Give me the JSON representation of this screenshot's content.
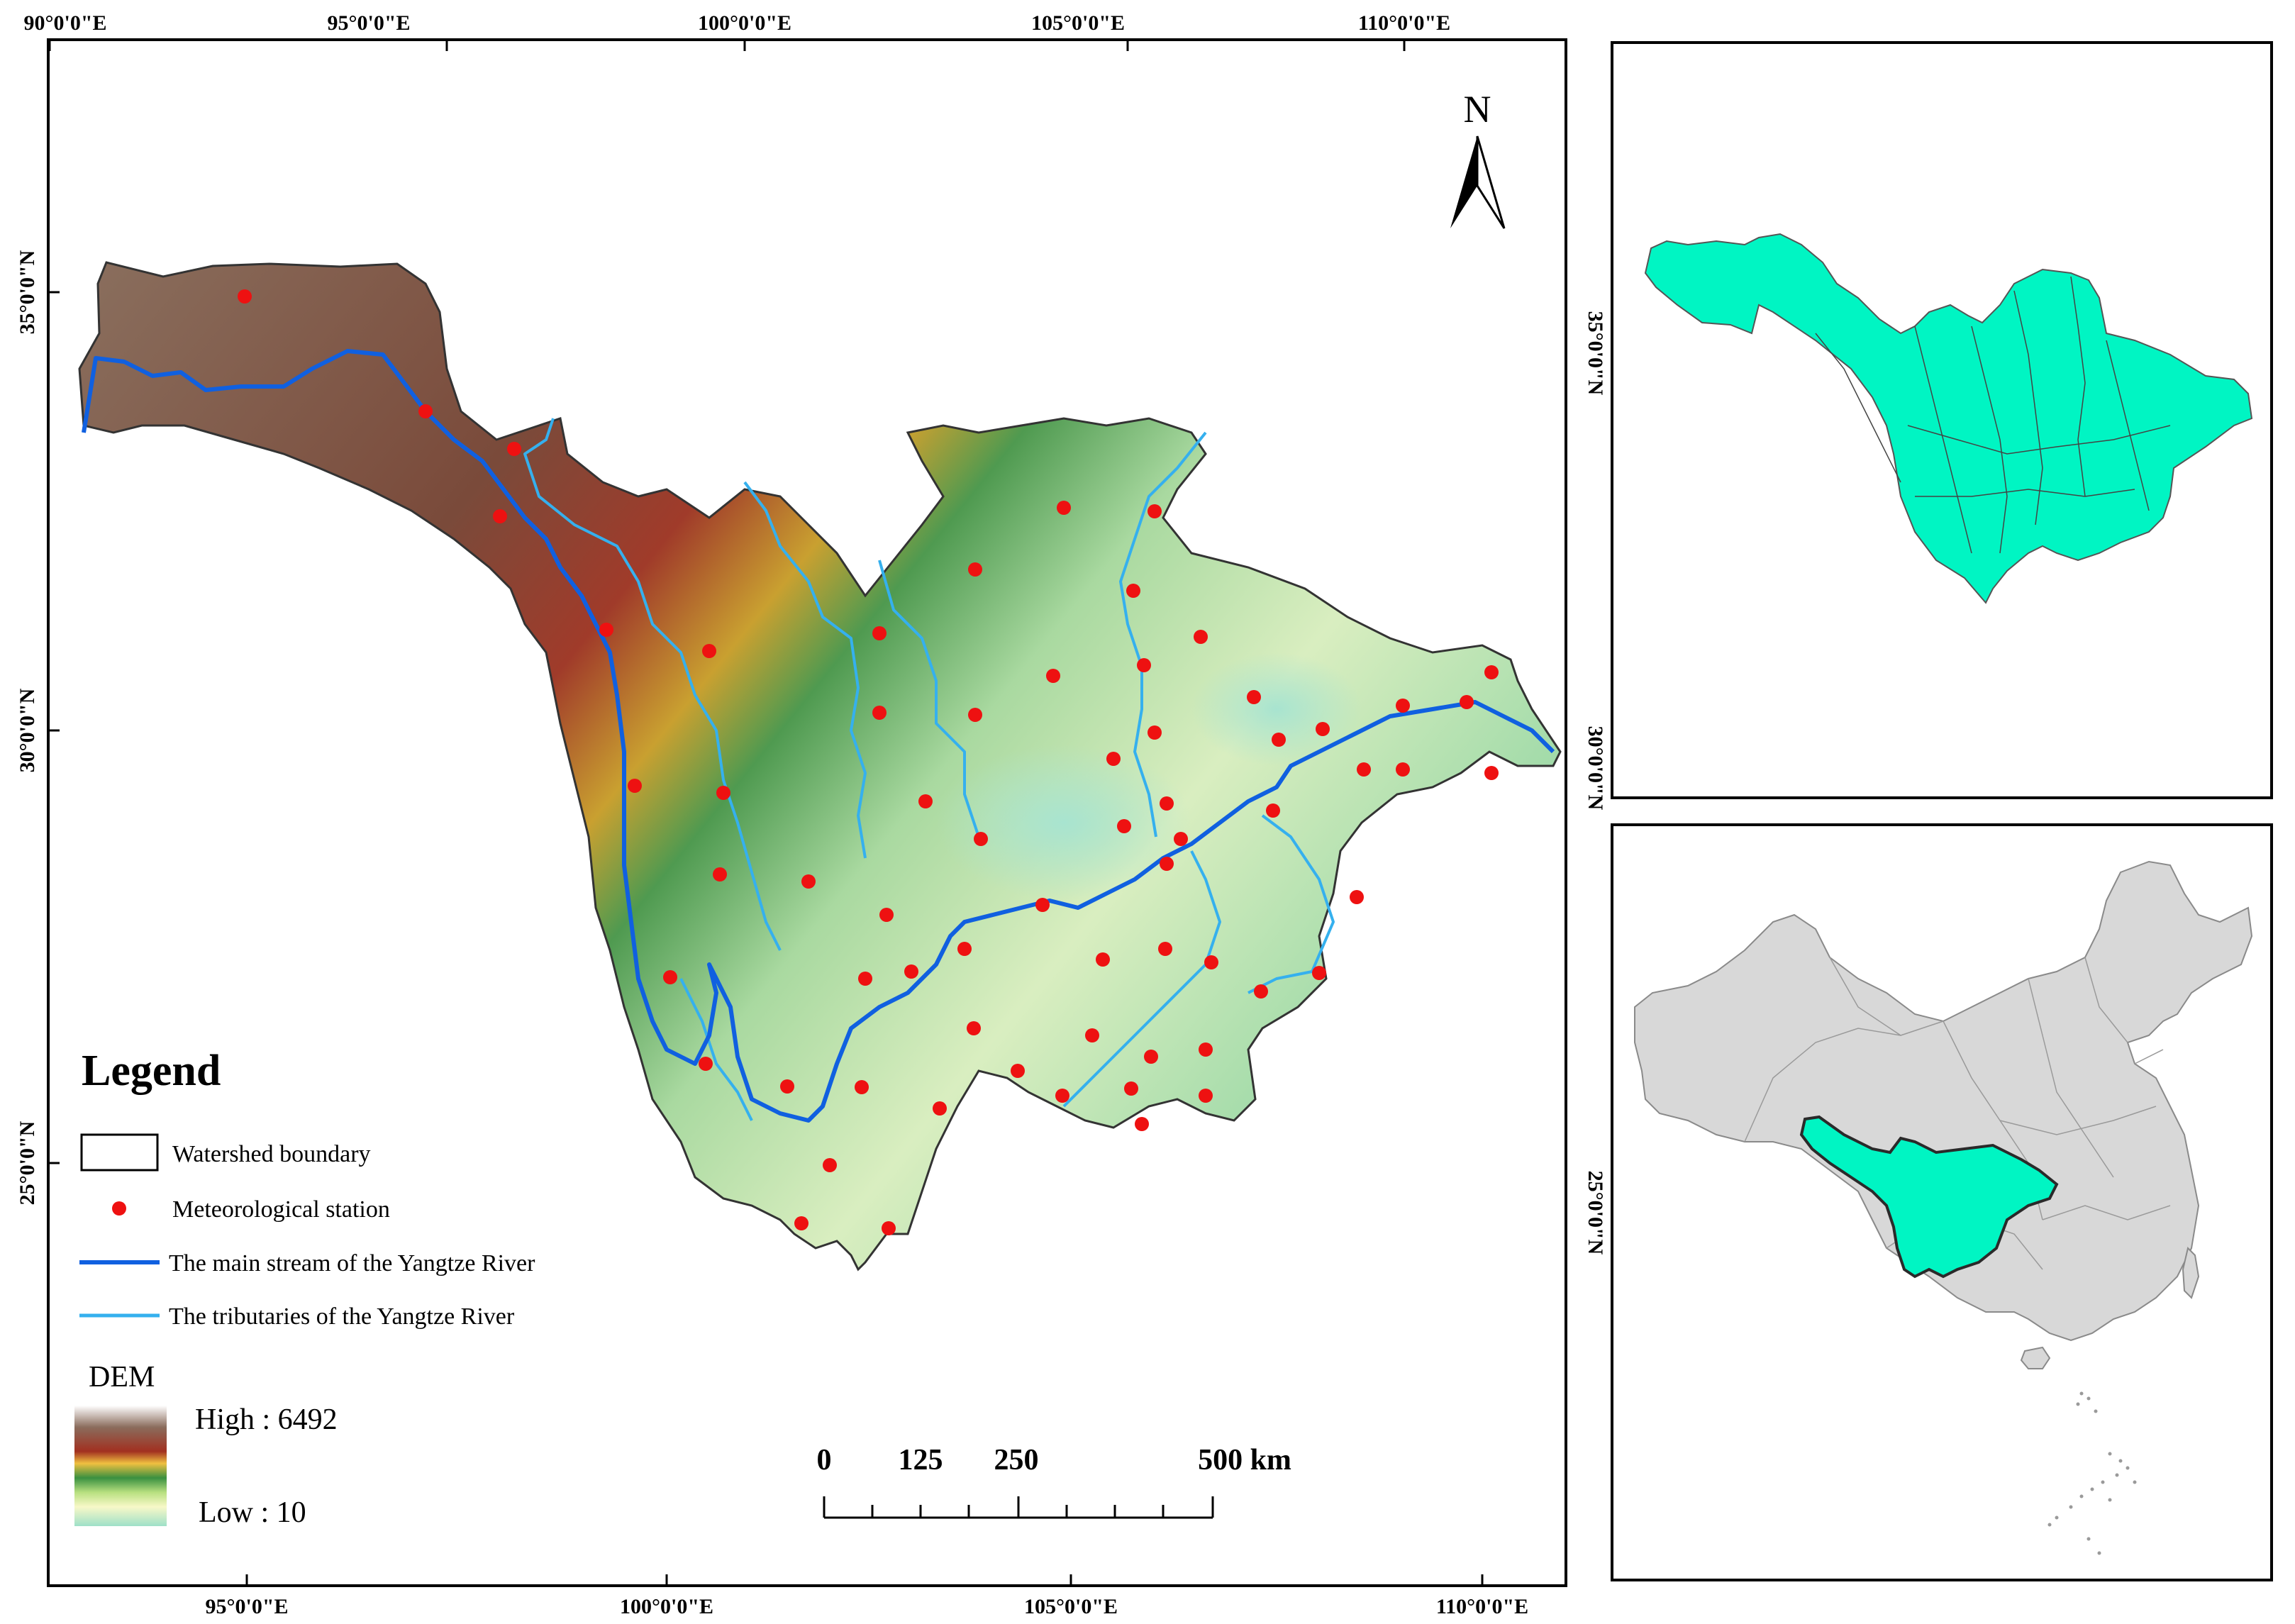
{
  "main_map": {
    "top_ticks": [
      "90°0'0\"E",
      "95°0'0\"E",
      "100°0'0\"E",
      "105°0'0\"E",
      "110°0'0\"E"
    ],
    "bottom_ticks": [
      "95°0'0\"E",
      "100°0'0\"E",
      "105°0'0\"E",
      "110°0'0\"E"
    ],
    "left_ticks": [
      "35°0'0\"N",
      "30°0'0\"N",
      "25°0'0\"N"
    ],
    "north_label": "N"
  },
  "legend": {
    "title": "Legend",
    "items": [
      {
        "label": "Watershed boundary"
      },
      {
        "label": "Meteorological station"
      },
      {
        "label": "The main stream of the Yangtze River"
      },
      {
        "label": "The tributaries of the Yangtze River"
      }
    ],
    "dem_title": "DEM",
    "dem_high": "High : 6492",
    "dem_low": "Low : 10"
  },
  "scale_bar": {
    "labels": [
      "0",
      "125",
      "250",
      "500 km"
    ]
  },
  "inset_top": {
    "right_ticks": [
      "35°0'0\"N",
      "30°0'0\"N"
    ]
  },
  "inset_bottom": {
    "right_ticks": [
      "25°0'0\"N"
    ]
  },
  "colors": {
    "main_stream": "#1060e0",
    "tributary": "#35b0ee",
    "station": "#ee1111",
    "basin_fill": "#00f5c3",
    "china_fill": "#d8d8d8"
  }
}
